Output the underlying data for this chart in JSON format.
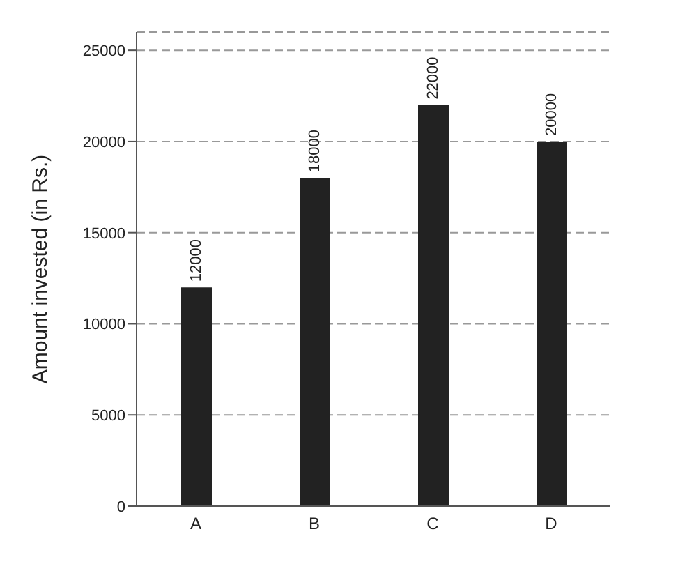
{
  "chart_data": {
    "type": "bar",
    "ylabel": "Amount invested (in Rs.)",
    "categories": [
      "A",
      "B",
      "C",
      "D"
    ],
    "values": [
      12000,
      18000,
      22000,
      20000
    ],
    "color": "#222222",
    "ylim": [
      0,
      26000
    ],
    "yticks": [
      0,
      5000,
      10000,
      15000,
      20000,
      25000
    ],
    "grid": "y",
    "data_labels": true
  }
}
